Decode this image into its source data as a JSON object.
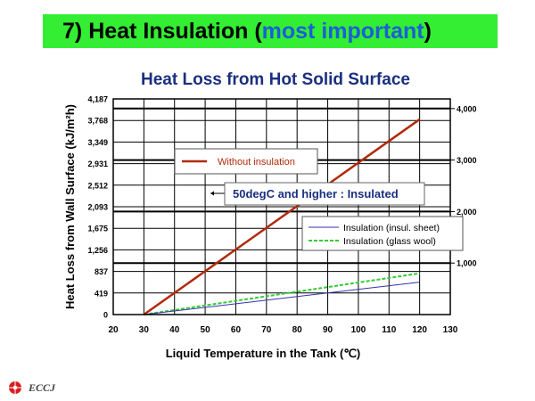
{
  "slide": {
    "heading_number": "7)",
    "heading_text": "Heat Insulation (",
    "heading_accent": "most important",
    "heading_close": ")",
    "logo_text": "ECCJ"
  },
  "colors": {
    "title_bar": "#33ee33",
    "accent": "#1a5fd6",
    "chart_title": "#1a2f80",
    "without_insulation": "#b12a0a",
    "insulation_sheet": "#3333aa",
    "glass_wool": "#33cc33"
  },
  "chart_data": {
    "type": "line",
    "title": "Heat Loss from Hot Solid Surface",
    "xlabel": "Liquid Temperature in the Tank (℃)",
    "ylabel": "Heat Loss from Wall Surface (kJ/m²h)",
    "xlim": [
      20,
      130
    ],
    "ylim": [
      0,
      4187
    ],
    "x_ticks": [
      "20",
      "30",
      "40",
      "50",
      "60",
      "70",
      "80",
      "90",
      "100",
      "110",
      "120",
      "130"
    ],
    "y_ticks": [
      {
        "value": 0,
        "label": "0"
      },
      {
        "value": 419,
        "label": "419"
      },
      {
        "value": 837,
        "label": "837"
      },
      {
        "value": 1256,
        "label": "1,256"
      },
      {
        "value": 1675,
        "label": "1,675"
      },
      {
        "value": 2093,
        "label": "2,093"
      },
      {
        "value": 2512,
        "label": "2,512"
      },
      {
        "value": 2931,
        "label": "2,931"
      },
      {
        "value": 3349,
        "label": "3,349"
      },
      {
        "value": 3768,
        "label": "3,768"
      },
      {
        "value": 4187,
        "label": "4,187"
      }
    ],
    "y2lim": [
      0,
      4187
    ],
    "y2_ticks": [
      {
        "value": 1000,
        "label": "1,000"
      },
      {
        "value": 2000,
        "label": "2,000"
      },
      {
        "value": 3000,
        "label": "3,000"
      },
      {
        "value": 4000,
        "label": "4,000"
      }
    ],
    "grid": true,
    "series": [
      {
        "name": "Without insulation",
        "color": "#b12a0a",
        "x": [
          30,
          120
        ],
        "y": [
          0,
          3790
        ]
      },
      {
        "name": "Insulation (insul. sheet)",
        "color": "#3333aa",
        "x": [
          30,
          120
        ],
        "y": [
          0,
          630
        ]
      },
      {
        "name": "Insulation (glass wool)",
        "color": "#33cc33",
        "x": [
          30,
          120
        ],
        "y": [
          0,
          800
        ]
      }
    ],
    "annotation": "50degC and higher : Insulated"
  }
}
